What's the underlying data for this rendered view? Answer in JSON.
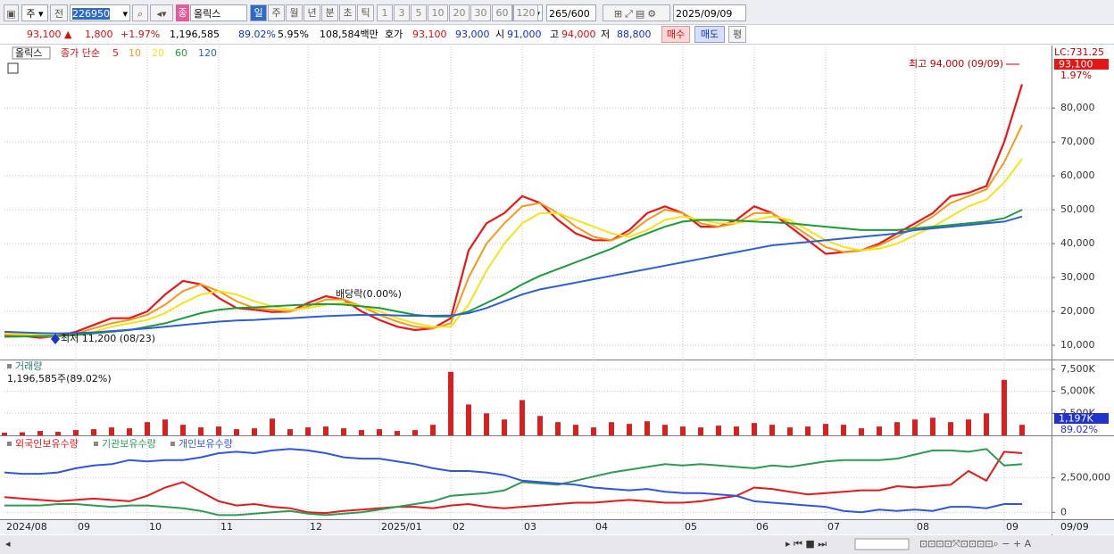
{
  "toolbar": {
    "market": "주",
    "prev": "전",
    "code": "226950",
    "name_badge": "종",
    "name": "올릭스",
    "periods": [
      "일",
      "주",
      "월",
      "년",
      "분",
      "초",
      "틱"
    ],
    "intervals": [
      "1",
      "3",
      "5",
      "10",
      "20",
      "30",
      "60",
      "120"
    ],
    "count": "265",
    "max": "/600",
    "date": "2025/09/09"
  },
  "quote": {
    "price": "93,100 ▲",
    "change": "1,800",
    "rate": "+1.97%",
    "volume": "1,196,585",
    "volume_ratio": "89.02%",
    "turnover": "5.95%",
    "amount": "108,584백만",
    "bid_label": "호가",
    "ask": "93,100",
    "bid": "93,000",
    "open_label": "시",
    "open": "91,000",
    "high_label": "고",
    "high": "94,000",
    "low_label": "저",
    "low": "88,800",
    "buy": "매수",
    "sell": "매도",
    "avg": "평"
  },
  "chart_data": [
    {
      "type": "line",
      "title": "올릭스",
      "legend_label": "종가 단순",
      "categories": [
        "2024/08",
        null,
        null,
        null,
        "09",
        null,
        null,
        null,
        "10",
        null,
        null,
        null,
        "11",
        null,
        null,
        null,
        null,
        "12",
        null,
        null,
        null,
        "2025/01",
        null,
        null,
        null,
        "02",
        null,
        null,
        null,
        "03",
        null,
        null,
        null,
        "04",
        null,
        null,
        null,
        null,
        "05",
        null,
        null,
        null,
        "06",
        null,
        null,
        null,
        "07",
        null,
        null,
        null,
        null,
        "08",
        null,
        null,
        null,
        null,
        "09",
        null
      ],
      "series": [
        {
          "name": "5",
          "color": "#e3191c",
          "values": [
            13000,
            12800,
            12200,
            12800,
            14000,
            16000,
            18000,
            18000,
            20000,
            25000,
            29000,
            28000,
            24000,
            21000,
            20500,
            19800,
            20000,
            22500,
            24500,
            23500,
            20000,
            17500,
            15500,
            14500,
            15000,
            18000,
            38000,
            46000,
            49000,
            54000,
            52000,
            47000,
            43000,
            41000,
            41000,
            44000,
            49000,
            51000,
            49000,
            45000,
            45000,
            47000,
            51000,
            49000,
            45000,
            41000,
            37000,
            37500,
            38000,
            40000,
            43000,
            46000,
            49000,
            54000,
            55000,
            57000,
            70000,
            87000
          ]
        },
        {
          "name": "10",
          "color": "#f39a1e",
          "values": [
            13200,
            13000,
            12600,
            12600,
            13400,
            15000,
            16500,
            17500,
            19000,
            22000,
            26000,
            28000,
            26000,
            23000,
            21000,
            20500,
            20000,
            21500,
            23500,
            23500,
            21500,
            19000,
            17000,
            15500,
            15000,
            16500,
            30000,
            40000,
            46000,
            51000,
            52000,
            49000,
            45000,
            42000,
            41000,
            43000,
            47000,
            50000,
            49000,
            46000,
            45000,
            46000,
            49000,
            49000,
            46000,
            42500,
            39000,
            37500,
            38000,
            39500,
            42000,
            45000,
            48000,
            52000,
            54000,
            56000,
            64000,
            75000
          ]
        },
        {
          "name": "20",
          "color": "#f5e21c",
          "values": [
            13500,
            13300,
            13000,
            12800,
            13000,
            14000,
            15500,
            16500,
            17500,
            19500,
            22500,
            25000,
            26000,
            25000,
            23000,
            21500,
            20500,
            21000,
            22000,
            22500,
            21500,
            20000,
            18000,
            16500,
            15500,
            15500,
            22000,
            32000,
            40000,
            46000,
            49000,
            49000,
            47000,
            45000,
            43000,
            42000,
            44000,
            47000,
            48000,
            47000,
            46000,
            46000,
            47000,
            48000,
            47000,
            44000,
            41000,
            39000,
            38000,
            38500,
            40000,
            42500,
            45000,
            48000,
            51000,
            53000,
            58000,
            65000
          ]
        },
        {
          "name": "60",
          "color": "#1f9a3a",
          "values": [
            12500,
            12600,
            12700,
            12800,
            13000,
            13500,
            14000,
            14500,
            15500,
            16500,
            18000,
            19500,
            20500,
            21000,
            21200,
            21500,
            21800,
            22000,
            22200,
            22000,
            21500,
            21000,
            20000,
            19000,
            18500,
            18500,
            20000,
            22500,
            25000,
            28000,
            30500,
            32500,
            34500,
            36500,
            38500,
            41000,
            43000,
            45000,
            46500,
            47000,
            47000,
            46800,
            46500,
            46300,
            46000,
            45500,
            45000,
            44500,
            44000,
            44000,
            44000,
            44500,
            45000,
            45500,
            46000,
            46500,
            47500,
            50000
          ]
        },
        {
          "name": "120",
          "color": "#2f5fd0",
          "values": [
            14000,
            13800,
            13600,
            13500,
            13600,
            13800,
            14200,
            14600,
            15000,
            15500,
            16000,
            16500,
            17000,
            17300,
            17500,
            17800,
            18000,
            18300,
            18600,
            18800,
            19000,
            19000,
            18800,
            18700,
            18700,
            18800,
            19500,
            21000,
            23000,
            25000,
            26500,
            27500,
            28500,
            29500,
            30500,
            31500,
            32500,
            33500,
            34500,
            35500,
            36500,
            37500,
            38500,
            39500,
            40000,
            40500,
            41000,
            41500,
            42000,
            42500,
            43000,
            44000,
            44500,
            45000,
            45500,
            46000,
            46500,
            48000
          ]
        }
      ],
      "ylim": [
        5800,
        98200
      ],
      "yticks": [
        {
          "value": 10000,
          "label": "10,000"
        },
        {
          "value": 20000,
          "label": "20,000"
        },
        {
          "value": 30000,
          "label": "30,000"
        },
        {
          "value": 40000,
          "label": "40,000"
        },
        {
          "value": 50000,
          "label": "50,000"
        },
        {
          "value": 60000,
          "label": "60,000"
        },
        {
          "value": 70000,
          "label": "70,000"
        },
        {
          "value": 80000,
          "label": "80,000"
        }
      ],
      "grid": true,
      "annotations": {
        "high": "최고 94,000 (09/09)",
        "low": "최저 11,200 (08/23)",
        "dividend": "배당락(0.00%)",
        "lc": "LC:731.25",
        "price": "93,100",
        "change": "1.97%"
      }
    },
    {
      "type": "bar",
      "title": "거래량",
      "subtitle": "1,196,585주(89.02%)",
      "color": "#d42222",
      "values": [
        300000,
        350000,
        500000,
        400000,
        600000,
        700000,
        900000,
        800000,
        1500000,
        1800000,
        1200000,
        900000,
        1000000,
        700000,
        800000,
        1900000,
        700000,
        900000,
        1000000,
        800000,
        600000,
        700000,
        500000,
        600000,
        1200000,
        7200000,
        3500000,
        2500000,
        1800000,
        4000000,
        2200000,
        1500000,
        1200000,
        900000,
        1500000,
        1300000,
        1600000,
        1200000,
        1000000,
        900000,
        1100000,
        1000000,
        1400000,
        1200000,
        900000,
        1000000,
        1300000,
        1200000,
        800000,
        1000000,
        1500000,
        1800000,
        2000000,
        1500000,
        1800000,
        2500000,
        6300000,
        1196585
      ],
      "ylim": [
        0,
        8500000
      ],
      "yticks": [
        {
          "value": 7500000,
          "label": "7,500K"
        },
        {
          "value": 5000000,
          "label": "5,000K"
        },
        {
          "value": 2500000,
          "label": "2,500K"
        }
      ],
      "grid": true,
      "annotations": {
        "last": "1,197K",
        "ratio": "89.02%"
      }
    },
    {
      "type": "line",
      "x_end_label": "09/09",
      "series": [
        {
          "name": "외국인보유수량",
          "color": "#e3191c",
          "values": [
            1100000,
            1000000,
            900000,
            800000,
            900000,
            1000000,
            900000,
            800000,
            1200000,
            1800000,
            2200000,
            1500000,
            800000,
            500000,
            600000,
            400000,
            300000,
            0,
            -50000,
            100000,
            200000,
            300000,
            400000,
            400000,
            300000,
            500000,
            600000,
            400000,
            300000,
            400000,
            500000,
            600000,
            700000,
            700000,
            800000,
            900000,
            800000,
            700000,
            700000,
            800000,
            1000000,
            1200000,
            1800000,
            1700000,
            1500000,
            1300000,
            1400000,
            1500000,
            1600000,
            1600000,
            1900000,
            1800000,
            1900000,
            2000000,
            3000000,
            2300000,
            4400000,
            4300000
          ]
        },
        {
          "name": "기관보유수량",
          "color": "#2e9a55",
          "values": [
            500000,
            500000,
            500000,
            600000,
            600000,
            500000,
            400000,
            500000,
            500000,
            400000,
            300000,
            100000,
            -200000,
            -200000,
            -100000,
            0,
            100000,
            -100000,
            -200000,
            -100000,
            0,
            200000,
            400000,
            600000,
            800000,
            1200000,
            1300000,
            1400000,
            1600000,
            2200000,
            2100000,
            2000000,
            2300000,
            2600000,
            2900000,
            3100000,
            3300000,
            3500000,
            3400000,
            3500000,
            3400000,
            3300000,
            3200000,
            3400000,
            3300000,
            3500000,
            3700000,
            3800000,
            3800000,
            3800000,
            3900000,
            4200000,
            4500000,
            4500000,
            4400000,
            4600000,
            3400000,
            3500000
          ]
        },
        {
          "name": "개인보유수량",
          "color": "#3355dd",
          "values": [
            2900000,
            2800000,
            2800000,
            2900000,
            3200000,
            3400000,
            3500000,
            3800000,
            3700000,
            3800000,
            3800000,
            4000000,
            4300000,
            4400000,
            4300000,
            4500000,
            4600000,
            4500000,
            4300000,
            4000000,
            3900000,
            3900000,
            3700000,
            3500000,
            3200000,
            3000000,
            3000000,
            2900000,
            2700000,
            2300000,
            2200000,
            2100000,
            2000000,
            1800000,
            1700000,
            1600000,
            1700000,
            1500000,
            1400000,
            1400000,
            1300000,
            1200000,
            800000,
            700000,
            600000,
            500000,
            400000,
            100000,
            0,
            200000,
            100000,
            200000,
            100000,
            400000,
            400000,
            300000,
            600000,
            600000
          ]
        }
      ],
      "ylim": [
        -500000,
        5400000
      ],
      "yticks": [
        {
          "value": 2500000,
          "label": "2,500,000"
        },
        0
      ],
      "grid": true
    }
  ]
}
